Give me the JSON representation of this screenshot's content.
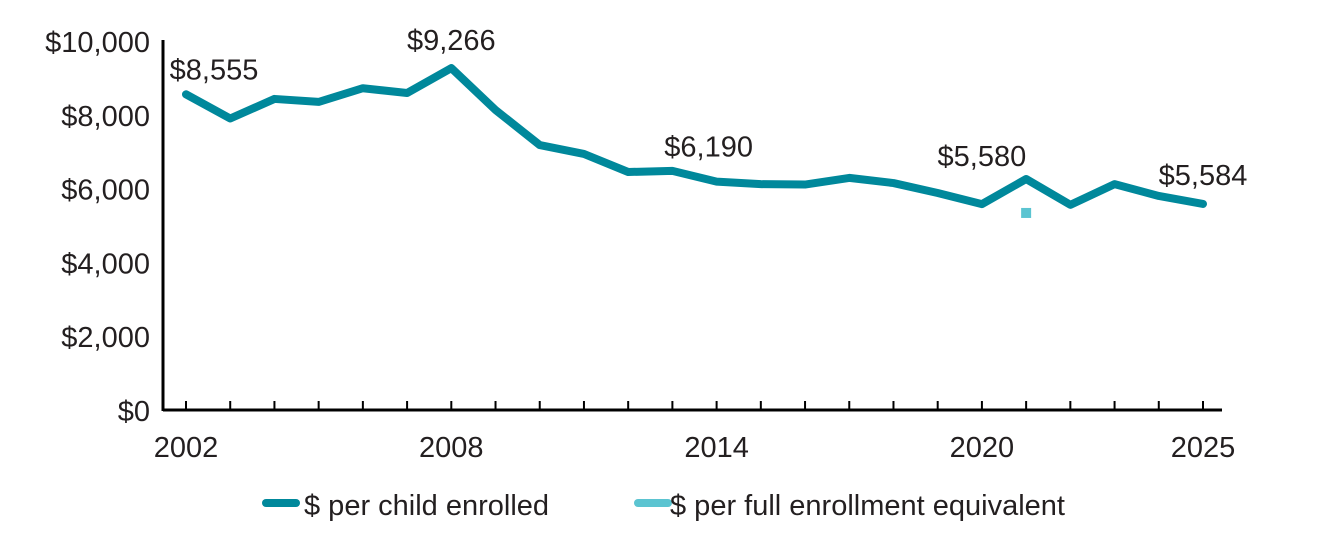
{
  "chart_data": {
    "type": "line",
    "title": "",
    "xlabel": "",
    "ylabel": "",
    "ylim": [
      0,
      10000
    ],
    "yticks": [
      0,
      2000,
      4000,
      6000,
      8000,
      10000
    ],
    "ytick_labels": [
      "$0",
      "$2,000",
      "$4,000",
      "$6,000",
      "$8,000",
      "$10,000"
    ],
    "xlim": [
      2002,
      2025
    ],
    "xtick_labels": [
      "2002",
      "2008",
      "2014",
      "2020",
      "2025"
    ],
    "xtick_values": [
      2002,
      2008,
      2014,
      2020,
      2025
    ],
    "grid": false,
    "legend_position": "bottom",
    "series": [
      {
        "name": "$ per child enrolled",
        "color": "#00889b",
        "x": [
          2002,
          2003,
          2004,
          2005,
          2006,
          2007,
          2008,
          2009,
          2010,
          2011,
          2012,
          2013,
          2014,
          2015,
          2016,
          2017,
          2018,
          2019,
          2020,
          2021,
          2022,
          2023,
          2024,
          2025
        ],
        "values": [
          8555,
          7900,
          8430,
          8350,
          8720,
          8590,
          9266,
          8130,
          7180,
          6940,
          6450,
          6480,
          6190,
          6120,
          6110,
          6290,
          6150,
          5880,
          5580,
          6260,
          5560,
          6120,
          5800,
          5584
        ]
      },
      {
        "name": "$ per full enrollment equivalent",
        "color": "#5bc4d1",
        "x": [
          2021
        ],
        "values": [
          5340
        ]
      }
    ],
    "annotations": [
      {
        "text": "$8,555",
        "x": 2002,
        "value": 8555
      },
      {
        "text": "$9,266",
        "x": 2008,
        "value": 9266
      },
      {
        "text": "$6,190",
        "x": 2014,
        "value": 6190
      },
      {
        "text": "$5,580",
        "x": 2020,
        "value": 5580
      },
      {
        "text": "$5,584",
        "x": 2025,
        "value": 5584
      }
    ]
  }
}
